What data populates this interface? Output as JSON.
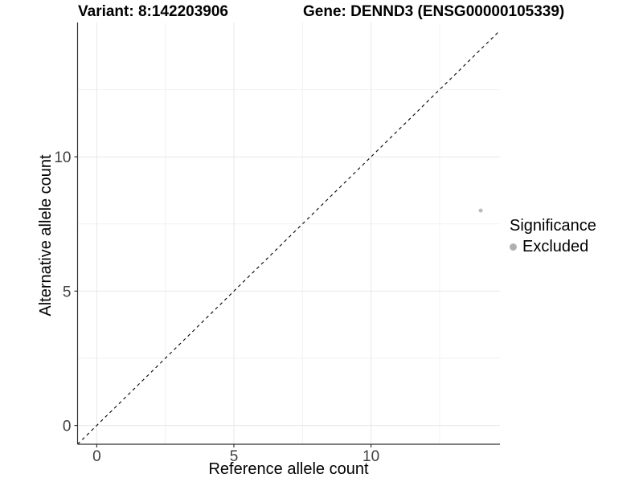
{
  "figure": {
    "title_variant": "Variant: 8:142203906",
    "title_gene": "Gene: DENND3 (ENSG00000105339)"
  },
  "chart_data": {
    "type": "scatter",
    "title_left": "Variant: 8:142203906",
    "title_right": "Gene: DENND3 (ENSG00000105339)",
    "xlabel": "Reference allele count",
    "ylabel": "Alternative allele count",
    "xlim": [
      -0.7,
      14.7
    ],
    "ylim": [
      -0.7,
      15.0
    ],
    "xticks": [
      0,
      5,
      10
    ],
    "yticks": [
      0,
      5,
      10
    ],
    "xtick_labels": [
      "0",
      "5",
      "10"
    ],
    "ytick_labels": [
      "0",
      "5",
      "10"
    ],
    "x_minor_gridlines": [
      2.5,
      7.5,
      12.5
    ],
    "y_minor_gridlines": [
      2.5,
      7.5,
      12.5
    ],
    "grid": true,
    "points": [
      {
        "x": 14,
        "y": 8,
        "significance": "Excluded",
        "color": "#bcbcbc",
        "radius": 2.5
      }
    ],
    "reference_line": {
      "type": "identity",
      "equation": "y = x",
      "style": "dashed",
      "color": "#000000"
    },
    "legend": {
      "title": "Significance",
      "position": "right",
      "items": [
        {
          "label": "Excluded",
          "color": "#b0b0b0",
          "marker": "circle"
        }
      ]
    },
    "colors": {
      "axis_line": "#333333",
      "major_grid": "#e7e7e7",
      "minor_grid": "#f2f2f2",
      "tick_text": "#404040"
    }
  }
}
